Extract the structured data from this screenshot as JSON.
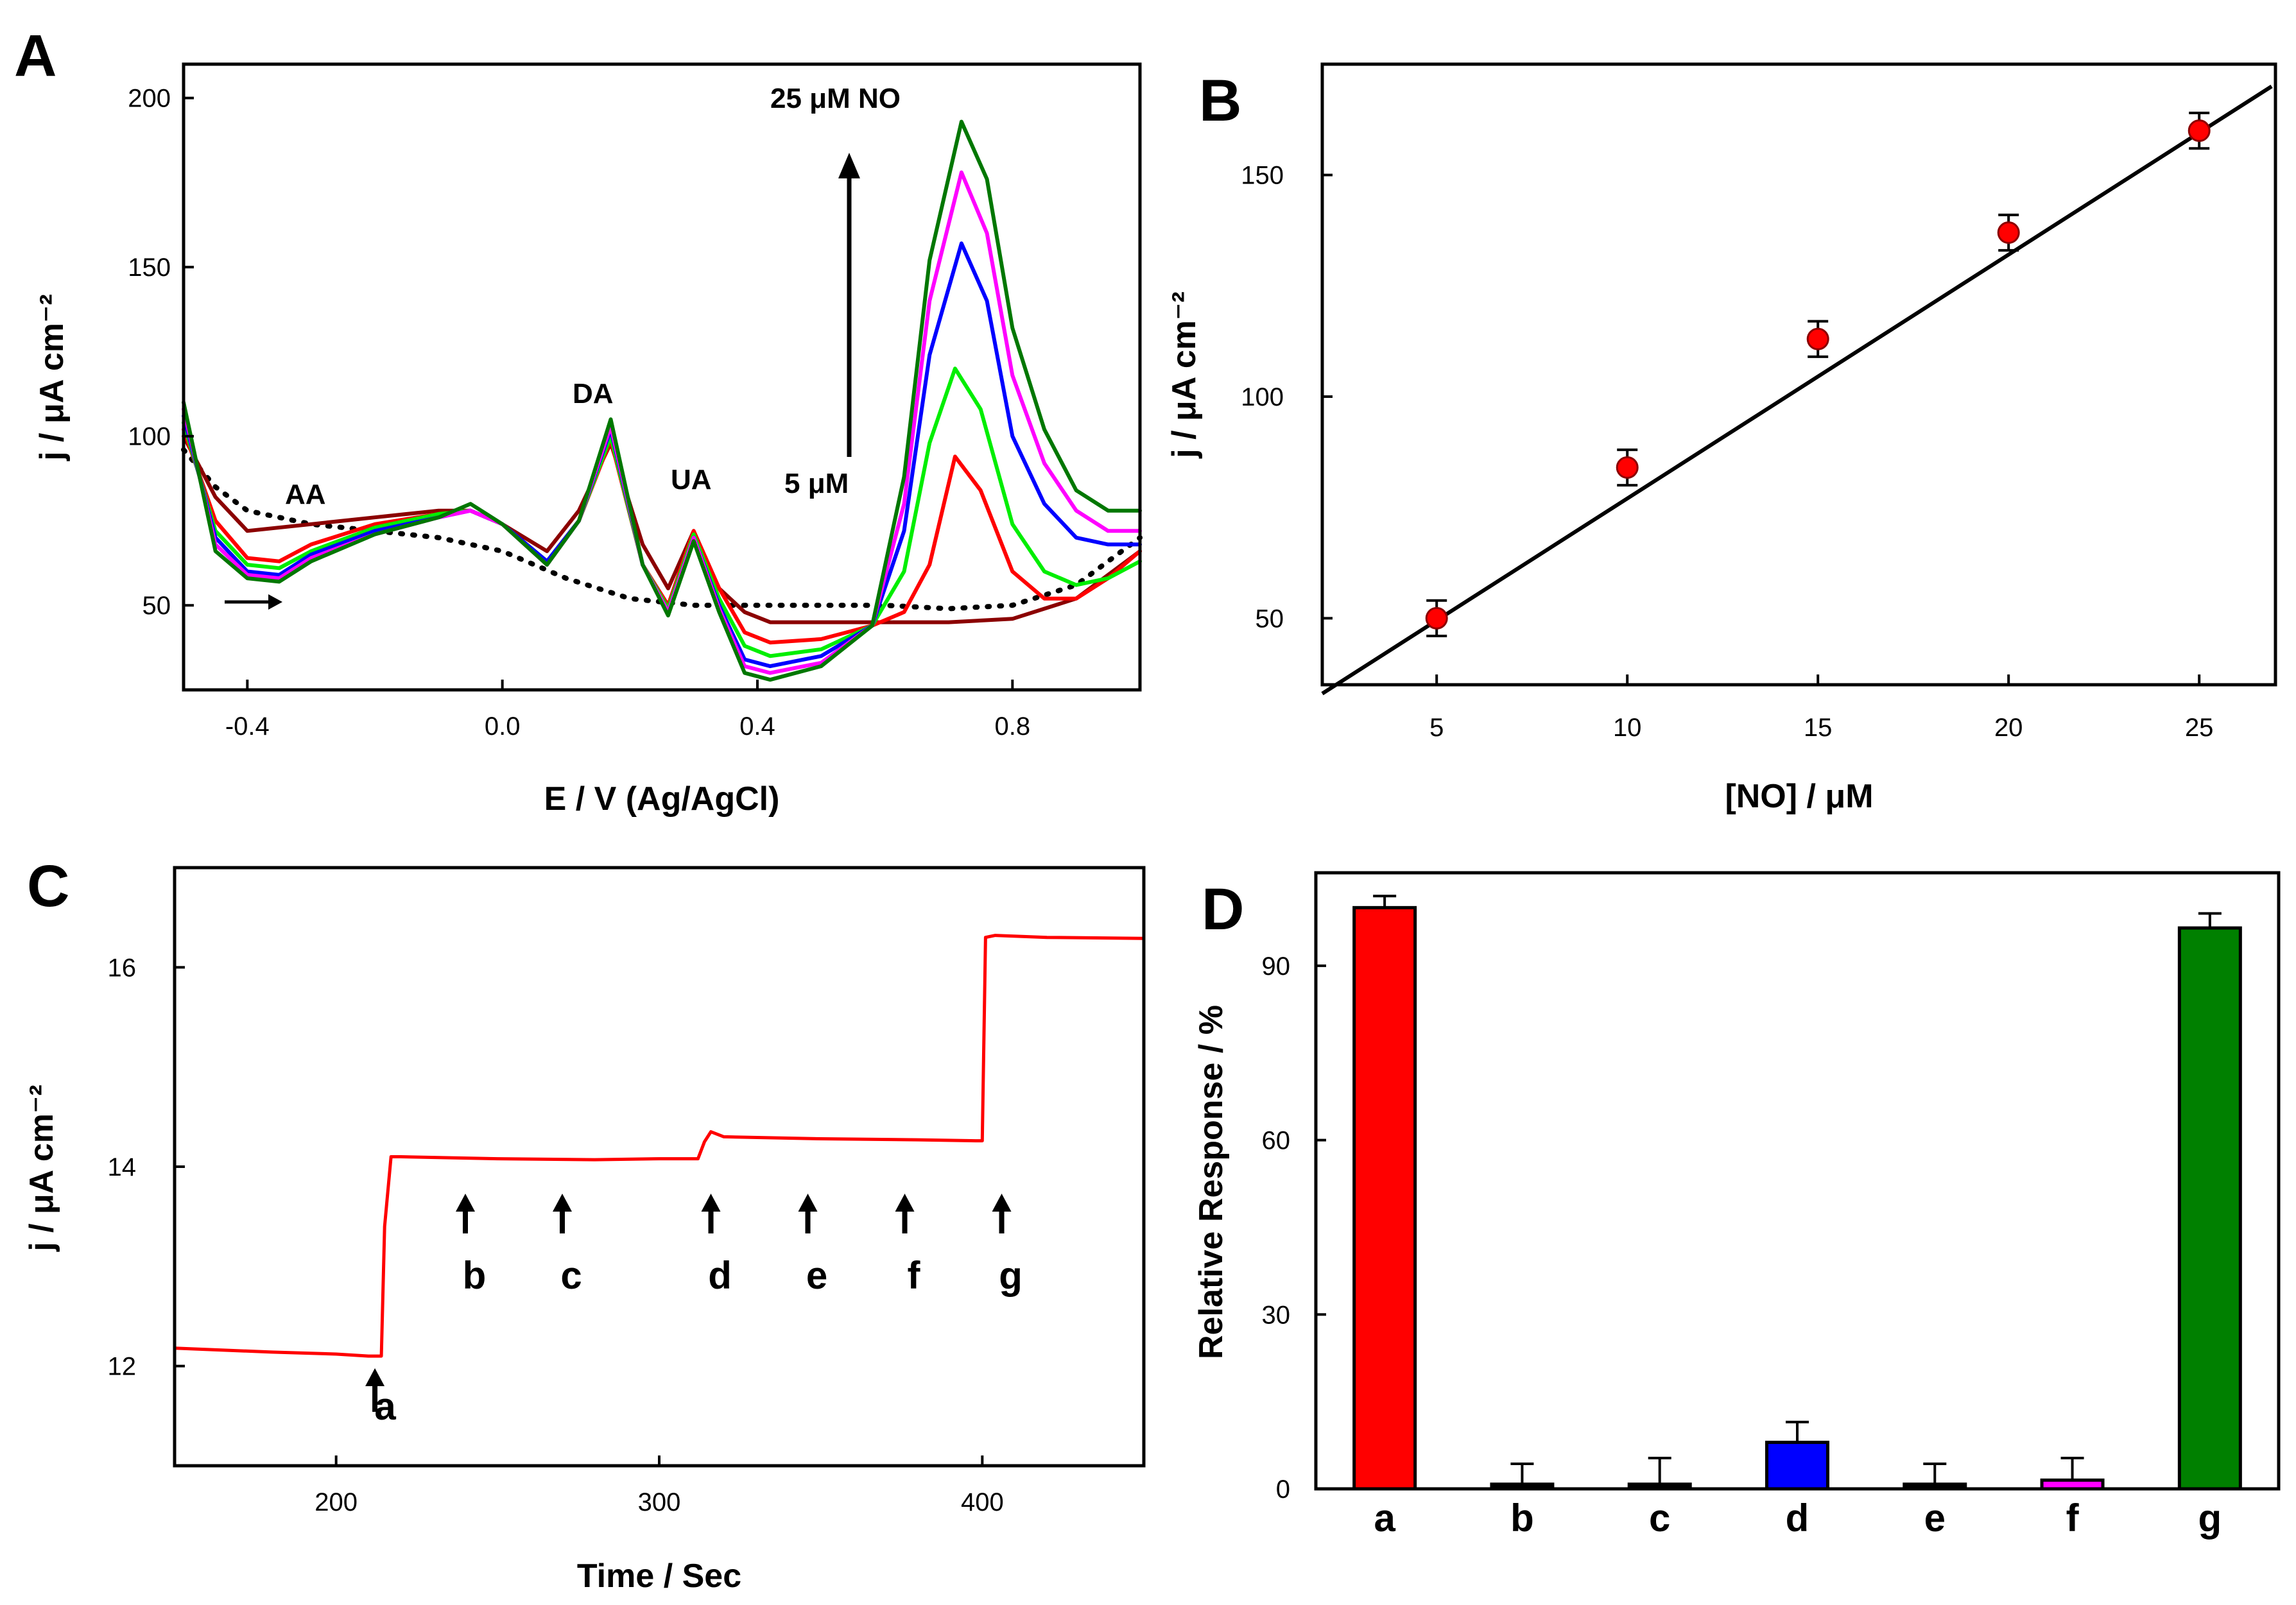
{
  "panels": {
    "A": "A",
    "B": "B",
    "C": "C",
    "D": "D"
  },
  "chart_data": [
    {
      "panel": "A",
      "type": "line",
      "xlabel": "E / V (Ag/AgCl)",
      "ylabel": "j / μA cm⁻²",
      "xlim": [
        -0.5,
        1.0
      ],
      "ylim": [
        25,
        210
      ],
      "xticks": [
        -0.4,
        0.0,
        0.4,
        0.8
      ],
      "xtick_labels": [
        "-0.4",
        "0.0",
        "0.4",
        "0.8"
      ],
      "yticks": [
        50,
        100,
        150,
        200
      ],
      "ytick_labels": [
        "50",
        "100",
        "150",
        "200"
      ],
      "annotations": {
        "top": "25 μM NO",
        "bottom": "5 μM",
        "AA": "AA",
        "DA": "DA",
        "UA": "UA"
      },
      "series": [
        {
          "color": "#000000",
          "dash": true,
          "x": [
            -0.5,
            -0.45,
            -0.4,
            -0.3,
            -0.2,
            -0.1,
            0.0,
            0.1,
            0.2,
            0.3,
            0.4,
            0.5,
            0.6,
            0.7,
            0.8,
            0.9,
            1.0
          ],
          "y": [
            96,
            85,
            78,
            74,
            72,
            70,
            66,
            58,
            52,
            50,
            50,
            50,
            50,
            49,
            50,
            56,
            70
          ]
        },
        {
          "color": "#8b0000",
          "x": [
            -0.5,
            -0.45,
            -0.4,
            -0.3,
            -0.2,
            -0.1,
            -0.05,
            0.0,
            0.07,
            0.12,
            0.17,
            0.22,
            0.26,
            0.3,
            0.34,
            0.38,
            0.42,
            0.5,
            0.6,
            0.7,
            0.8,
            0.9,
            1.0
          ],
          "y": [
            100,
            82,
            72,
            74,
            76,
            78,
            78,
            74,
            66,
            78,
            98,
            68,
            55,
            72,
            55,
            48,
            45,
            45,
            45,
            45,
            46,
            52,
            66
          ]
        },
        {
          "color": "#ff0000",
          "x": [
            -0.5,
            -0.45,
            -0.4,
            -0.35,
            -0.3,
            -0.2,
            -0.1,
            -0.05,
            0.0,
            0.07,
            0.12,
            0.17,
            0.22,
            0.26,
            0.3,
            0.34,
            0.38,
            0.42,
            0.5,
            0.58,
            0.63,
            0.67,
            0.71,
            0.75,
            0.8,
            0.85,
            0.9,
            0.95,
            1.0
          ],
          "y": [
            102,
            75,
            64,
            63,
            68,
            74,
            77,
            78,
            74,
            63,
            75,
            99,
            62,
            50,
            72,
            55,
            42,
            39,
            40,
            44,
            48,
            62,
            94,
            84,
            60,
            52,
            52,
            58,
            66
          ]
        },
        {
          "color": "#00ee00",
          "x": [
            -0.5,
            -0.45,
            -0.4,
            -0.35,
            -0.3,
            -0.2,
            -0.1,
            -0.05,
            0.0,
            0.07,
            0.12,
            0.17,
            0.22,
            0.26,
            0.3,
            0.34,
            0.38,
            0.42,
            0.5,
            0.58,
            0.63,
            0.67,
            0.71,
            0.75,
            0.8,
            0.85,
            0.9,
            0.95,
            1.0
          ],
          "y": [
            104,
            72,
            62,
            61,
            66,
            73,
            77,
            78,
            74,
            63,
            75,
            100,
            62,
            49,
            71,
            52,
            38,
            35,
            37,
            44,
            60,
            98,
            120,
            108,
            74,
            60,
            56,
            58,
            63
          ]
        },
        {
          "color": "#0000ff",
          "x": [
            -0.5,
            -0.45,
            -0.4,
            -0.35,
            -0.3,
            -0.2,
            -0.1,
            -0.05,
            0.0,
            0.07,
            0.12,
            0.17,
            0.22,
            0.26,
            0.3,
            0.34,
            0.38,
            0.42,
            0.5,
            0.58,
            0.63,
            0.67,
            0.72,
            0.76,
            0.8,
            0.85,
            0.9,
            0.95,
            1.0
          ],
          "y": [
            106,
            70,
            60,
            59,
            65,
            72,
            76,
            78,
            74,
            63,
            75,
            102,
            62,
            48,
            70,
            50,
            34,
            32,
            35,
            44,
            72,
            124,
            157,
            140,
            100,
            80,
            70,
            68,
            68
          ]
        },
        {
          "color": "#ff00ff",
          "x": [
            -0.5,
            -0.45,
            -0.4,
            -0.35,
            -0.3,
            -0.2,
            -0.1,
            -0.05,
            0.0,
            0.07,
            0.12,
            0.17,
            0.22,
            0.26,
            0.3,
            0.34,
            0.38,
            0.42,
            0.5,
            0.58,
            0.63,
            0.67,
            0.72,
            0.76,
            0.8,
            0.85,
            0.9,
            0.95,
            1.0
          ],
          "y": [
            108,
            68,
            59,
            58,
            64,
            71,
            76,
            78,
            74,
            62,
            75,
            103,
            62,
            48,
            70,
            49,
            32,
            30,
            33,
            44,
            80,
            140,
            178,
            160,
            118,
            92,
            78,
            72,
            72
          ]
        },
        {
          "color": "#007700",
          "x": [
            -0.5,
            -0.45,
            -0.4,
            -0.35,
            -0.3,
            -0.2,
            -0.1,
            -0.05,
            0.0,
            0.07,
            0.12,
            0.17,
            0.22,
            0.26,
            0.3,
            0.34,
            0.38,
            0.42,
            0.5,
            0.58,
            0.63,
            0.67,
            0.72,
            0.76,
            0.8,
            0.85,
            0.9,
            0.95,
            1.0
          ],
          "y": [
            110,
            66,
            58,
            57,
            63,
            71,
            76,
            80,
            74,
            62,
            75,
            105,
            62,
            47,
            69,
            48,
            30,
            28,
            32,
            44,
            88,
            152,
            193,
            176,
            132,
            102,
            84,
            78,
            78
          ]
        }
      ]
    },
    {
      "panel": "B",
      "type": "scatter",
      "xlabel": "[NO] / μM",
      "ylabel": "j / μA cm⁻²",
      "xlim": [
        2,
        27
      ],
      "ylim": [
        35,
        175
      ],
      "xticks": [
        5,
        10,
        15,
        20,
        25
      ],
      "xtick_labels": [
        "5",
        "10",
        "15",
        "20",
        "25"
      ],
      "yticks": [
        50,
        100,
        150
      ],
      "ytick_labels": [
        "50",
        "100",
        "150"
      ],
      "x": [
        5,
        10,
        15,
        20,
        25
      ],
      "y": [
        50,
        84,
        113,
        137,
        160
      ],
      "err": [
        4,
        4,
        4,
        4,
        4
      ],
      "fit": {
        "x": [
          2,
          26.9
        ],
        "y": [
          33,
          170
        ]
      }
    },
    {
      "panel": "C",
      "type": "line",
      "xlabel": "Time / Sec",
      "ylabel": "j / μA cm⁻²",
      "xlim": [
        150,
        450
      ],
      "ylim": [
        11,
        17
      ],
      "xticks": [
        200,
        300,
        400
      ],
      "xtick_labels": [
        "200",
        "300",
        "400"
      ],
      "yticks": [
        12,
        14,
        16
      ],
      "ytick_labels": [
        "12",
        "14",
        "16"
      ],
      "x": [
        150,
        180,
        200,
        210,
        214,
        215,
        217,
        220,
        250,
        280,
        300,
        312,
        314,
        316,
        320,
        350,
        380,
        398,
        400,
        401,
        404,
        420,
        450
      ],
      "y": [
        12.18,
        12.14,
        12.12,
        12.1,
        12.1,
        13.4,
        14.1,
        14.1,
        14.08,
        14.07,
        14.08,
        14.08,
        14.25,
        14.35,
        14.3,
        14.28,
        14.27,
        14.26,
        14.26,
        16.3,
        16.32,
        16.3,
        16.29
      ],
      "events": [
        {
          "label": "a",
          "x": 212
        },
        {
          "label": "b",
          "x": 240
        },
        {
          "label": "c",
          "x": 270
        },
        {
          "label": "d",
          "x": 316
        },
        {
          "label": "e",
          "x": 346
        },
        {
          "label": "f",
          "x": 376
        },
        {
          "label": "g",
          "x": 406
        }
      ]
    },
    {
      "panel": "D",
      "type": "bar",
      "ylabel": "Relative Response / %",
      "ylim": [
        0,
        106
      ],
      "yticks": [
        0,
        30,
        60,
        90
      ],
      "ytick_labels": [
        "0",
        "30",
        "60",
        "90"
      ],
      "categories": [
        "a",
        "b",
        "c",
        "d",
        "e",
        "f",
        "g"
      ],
      "values": [
        100,
        0.8,
        0.8,
        8,
        0.8,
        1.5,
        96.5
      ],
      "err": [
        2,
        3.5,
        4.5,
        3.5,
        3.5,
        3.8,
        2.5
      ],
      "colors": [
        "#ff0000",
        "#000000",
        "#000000",
        "#0000ff",
        "#000000",
        "#ff00ff",
        "#008000"
      ]
    }
  ]
}
